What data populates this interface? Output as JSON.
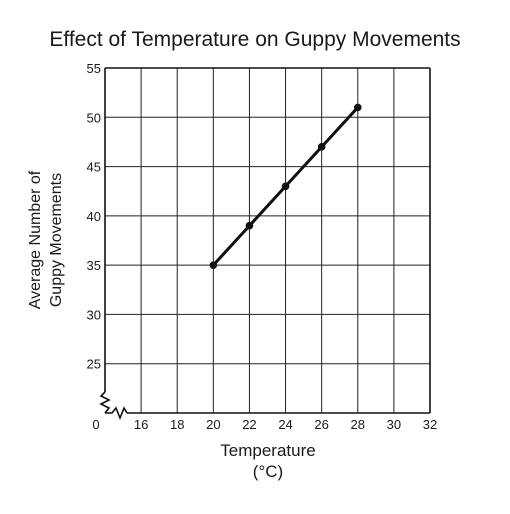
{
  "chart_data": {
    "type": "line",
    "title": "Effect of Temperature on Guppy Movements",
    "xlabel_line1": "Temperature",
    "xlabel_line2": "(°C)",
    "ylabel_line1": "Average Number of",
    "ylabel_line2": "Guppy Movements",
    "x_origin_label": "0",
    "x_ticks": [
      16,
      18,
      20,
      22,
      24,
      26,
      28,
      30,
      32
    ],
    "y_ticks": [
      25,
      30,
      35,
      40,
      45,
      50,
      55
    ],
    "xlim": [
      14,
      32
    ],
    "ylim": [
      20,
      55
    ],
    "axis_break": true,
    "grid": true,
    "series": [
      {
        "x": [
          20,
          22,
          24,
          26,
          28
        ],
        "y": [
          35,
          39,
          43,
          47,
          51
        ]
      }
    ]
  }
}
